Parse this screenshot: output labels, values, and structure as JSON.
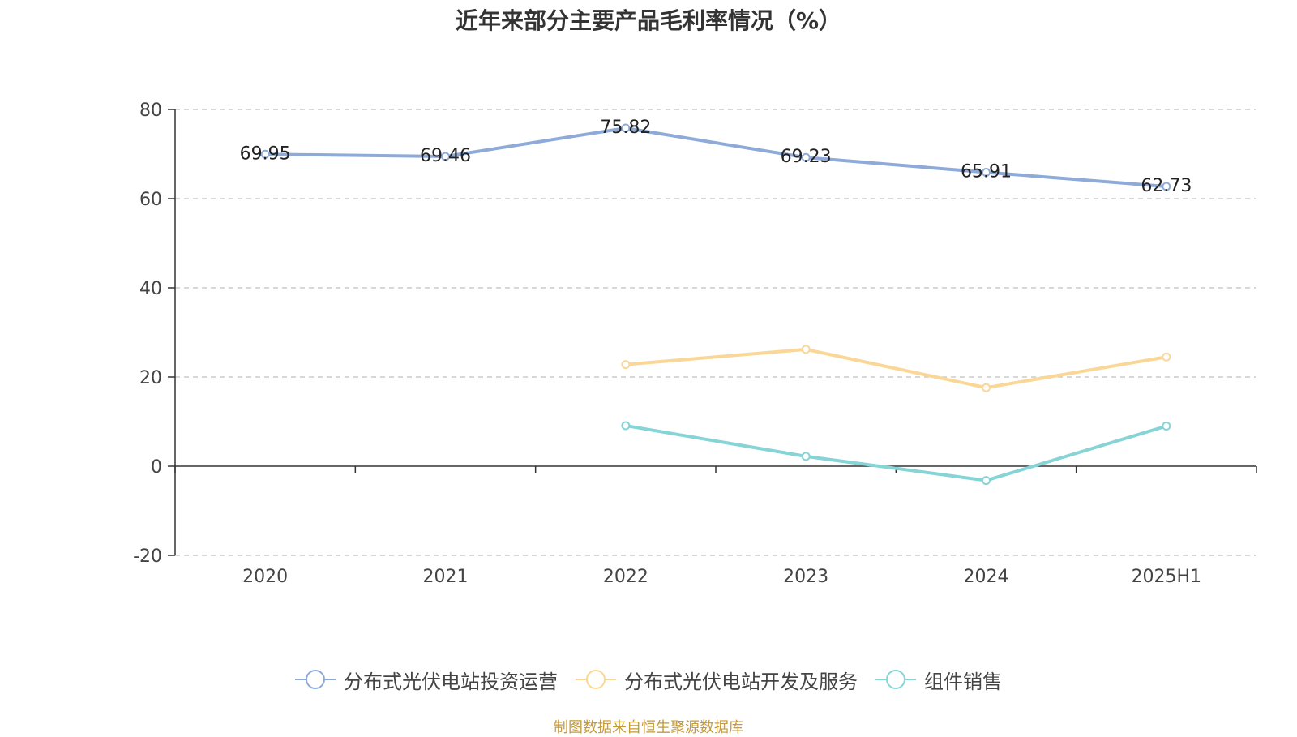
{
  "chart_data": {
    "type": "line",
    "title": "近年来部分主要产品毛利率情况（%）",
    "categories": [
      "2020",
      "2021",
      "2022",
      "2023",
      "2024",
      "2025H1"
    ],
    "ylim": [
      -20,
      80
    ],
    "yticks": [
      -20,
      0,
      20,
      40,
      60,
      80
    ],
    "grid": true,
    "legend_position": "bottom",
    "series": [
      {
        "name": "分布式光伏电站投资运营",
        "color": "#8eaad8",
        "values": [
          69.95,
          69.46,
          75.82,
          69.23,
          65.91,
          62.73
        ],
        "labels": [
          "69.95",
          "69.46",
          "75.82",
          "69.23",
          "65.91",
          "62.73"
        ]
      },
      {
        "name": "分布式光伏电站开发及服务",
        "color": "#fad796",
        "values": [
          null,
          null,
          22.8,
          26.2,
          17.6,
          24.5
        ]
      },
      {
        "name": "组件销售",
        "color": "#86d4d6",
        "values": [
          null,
          null,
          9.1,
          2.2,
          -3.2,
          9.0
        ]
      }
    ]
  },
  "source": "制图数据来自恒生聚源数据库"
}
